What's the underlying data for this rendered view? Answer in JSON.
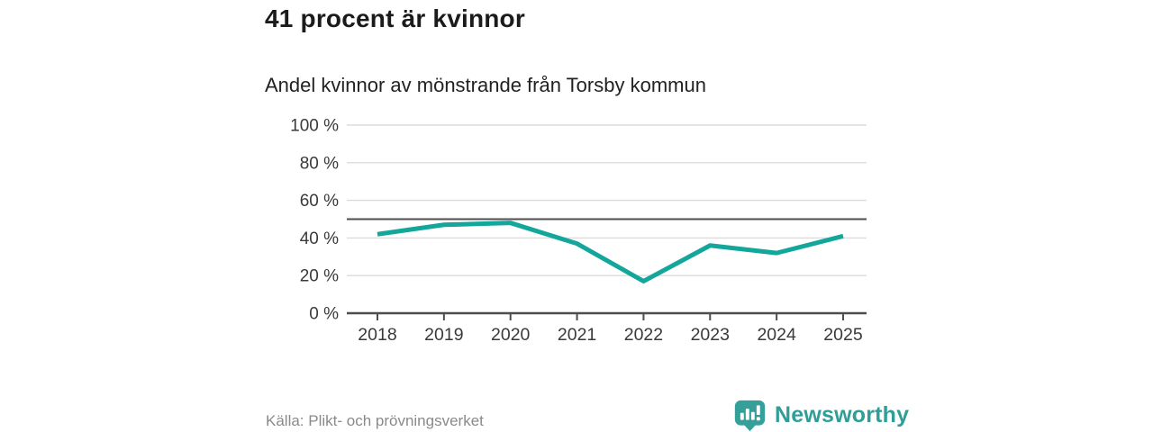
{
  "header": {
    "title": "41 procent är kvinnor",
    "subtitle": "Andel kvinnor av mönstrande från Torsby kommun"
  },
  "chart_data": {
    "type": "line",
    "title": "41 procent är kvinnor",
    "subtitle": "Andel kvinnor av mönstrande från Torsby kommun",
    "categories": [
      "2018",
      "2019",
      "2020",
      "2021",
      "2022",
      "2023",
      "2024",
      "2025"
    ],
    "series": [
      {
        "name": "Andel kvinnor av mönstrande",
        "values": [
          42,
          47,
          48,
          37,
          17,
          36,
          32,
          41
        ]
      }
    ],
    "ylim": [
      0,
      100
    ],
    "yticks": [
      0,
      20,
      40,
      60,
      80,
      100
    ],
    "ytick_labels": [
      "0 %",
      "20 %",
      "40 %",
      "60 %",
      "80 %",
      "100 %"
    ],
    "reference_line": 50,
    "grid": true,
    "legend": "none",
    "colors": {
      "line": "#13a79c",
      "grid": "#dcdcdc",
      "axis": "#4d4d4d",
      "reference": "#4d4d4d",
      "tick_text": "#3a3a3a"
    }
  },
  "footer": {
    "source": "Källa: Plikt- och prövningsverket",
    "brand": "Newsworthy"
  },
  "colors": {
    "brand_teal": "#2f9e96"
  }
}
